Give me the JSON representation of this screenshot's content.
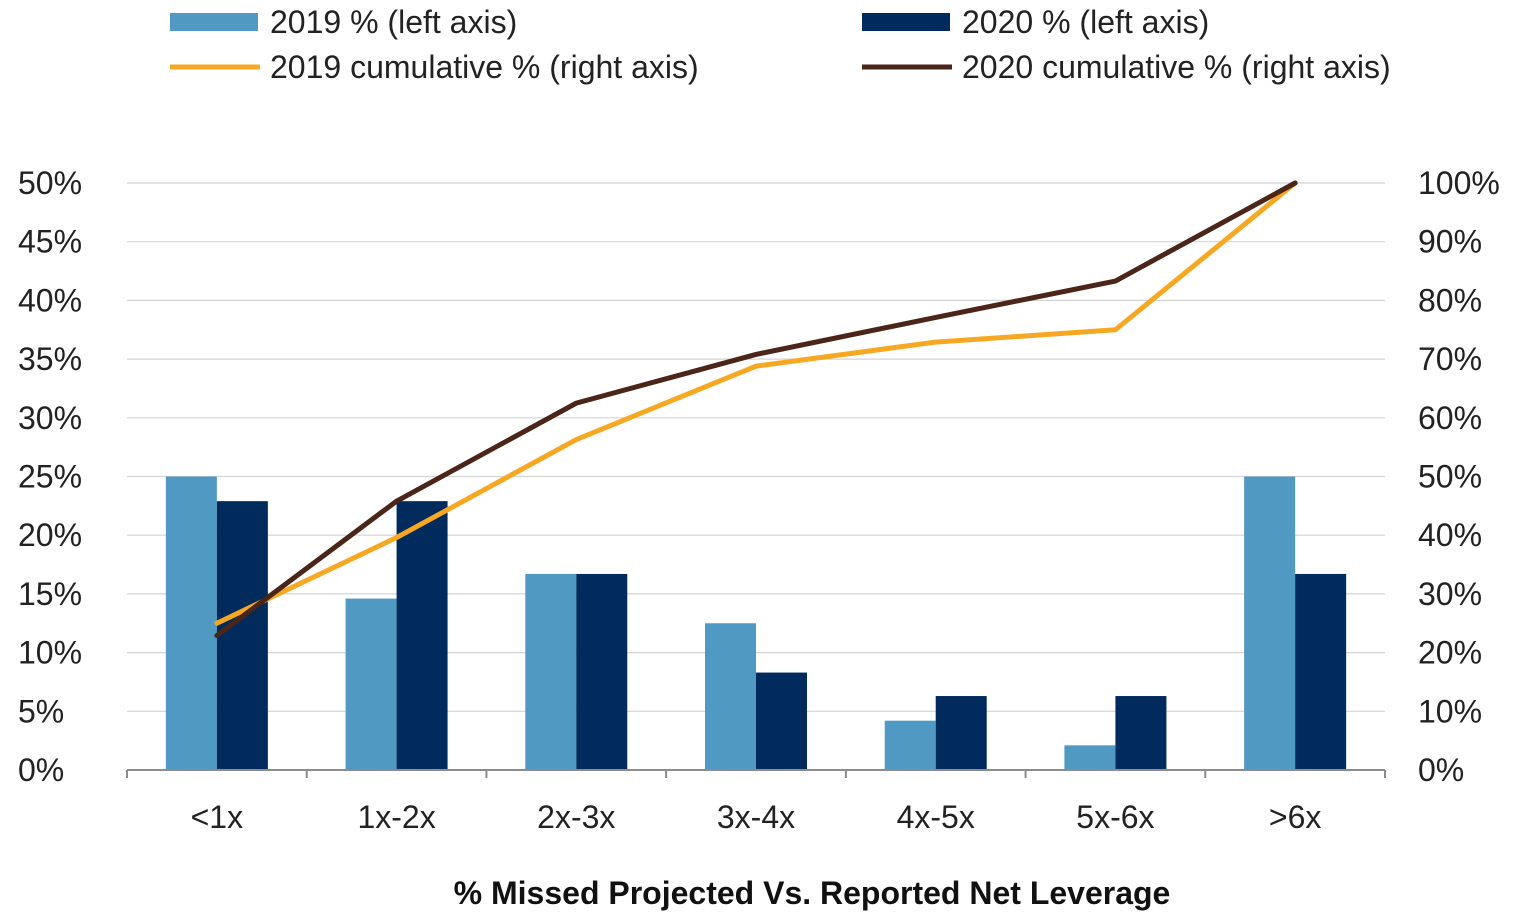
{
  "chart_data": {
    "type": "bar",
    "title": "",
    "xlabel": "% Missed Projected Vs. Reported Net Leverage",
    "ylabel": "",
    "y2label": "",
    "categories": [
      "<1x",
      "1x-2x",
      "2x-3x",
      "3x-4x",
      "4x-5x",
      "5x-6x",
      ">6x"
    ],
    "ylim": [
      0,
      50
    ],
    "y2lim": [
      0,
      100
    ],
    "yticks": [
      "0%",
      "5%",
      "10%",
      "15%",
      "20%",
      "25%",
      "30%",
      "35%",
      "40%",
      "45%",
      "50%"
    ],
    "y2ticks": [
      "0%",
      "10%",
      "20%",
      "30%",
      "40%",
      "50%",
      "60%",
      "70%",
      "80%",
      "90%",
      "100%"
    ],
    "grid": true,
    "legend_position": "top",
    "series": [
      {
        "name": "2019 % (left axis)",
        "kind": "bar",
        "axis": "left",
        "color": "#4f99c2",
        "values": [
          25,
          14.6,
          16.7,
          12.5,
          4.2,
          2.1,
          25
        ]
      },
      {
        "name": "2020 % (left axis)",
        "kind": "bar",
        "axis": "left",
        "color": "#002b5c",
        "values": [
          22.9,
          22.9,
          16.7,
          8.3,
          6.3,
          6.3,
          16.7
        ]
      },
      {
        "name": "2019 cumulative % (right axis)",
        "kind": "line",
        "axis": "right",
        "color": "#f7a823",
        "values": [
          25,
          39.6,
          56.3,
          68.8,
          72.9,
          75,
          100
        ]
      },
      {
        "name": "2020 cumulative % (right axis)",
        "kind": "line",
        "axis": "right",
        "color": "#4a2518",
        "values": [
          22.9,
          45.8,
          62.5,
          70.8,
          77.1,
          83.3,
          100
        ]
      }
    ]
  }
}
